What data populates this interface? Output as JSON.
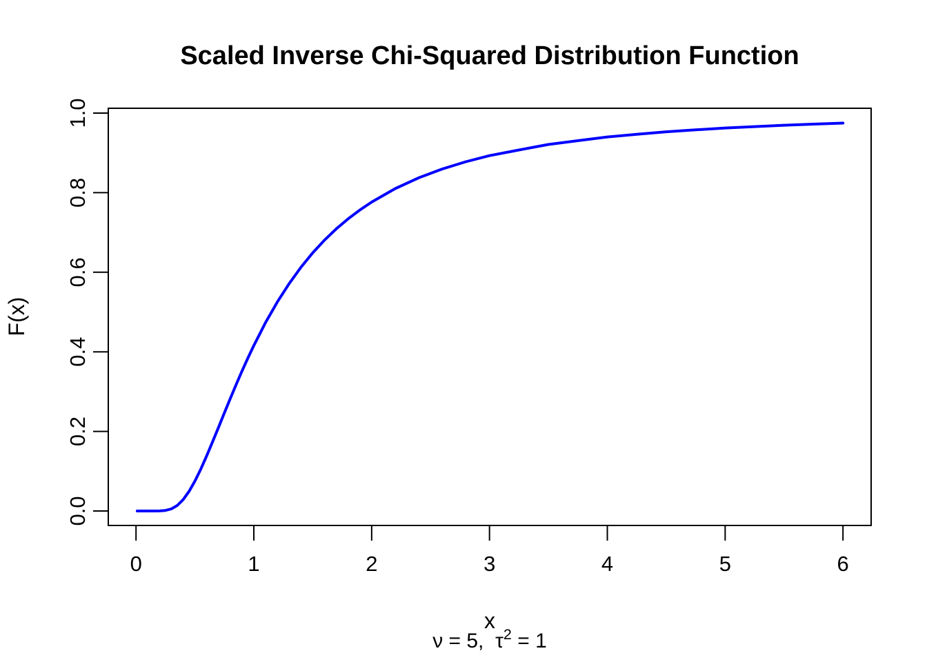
{
  "chart_data": {
    "type": "line",
    "title": "Scaled Inverse Chi-Squared Distribution Function",
    "xlabel": "x",
    "ylabel": "F(x)",
    "subtitle_prefix": "ν = 5,  τ",
    "subtitle_sup": "2",
    "subtitle_suffix": " = 1",
    "parameters": {
      "nu": 5,
      "tau_squared": 1
    },
    "line_color": "#0000ff",
    "axis_color": "#000000",
    "background_color": "#ffffff",
    "grid": false,
    "legend": null,
    "xlim": [
      0,
      6
    ],
    "ylim": [
      0.0,
      1.0
    ],
    "x_tick_values": [
      0,
      1,
      2,
      3,
      4,
      5,
      6
    ],
    "x_tick_labels": [
      "0",
      "1",
      "2",
      "3",
      "4",
      "5",
      "6"
    ],
    "y_tick_values": [
      0.0,
      0.2,
      0.4,
      0.6,
      0.8,
      1.0
    ],
    "y_tick_labels": [
      "0.0",
      "0.2",
      "0.4",
      "0.6",
      "0.8",
      "1.0"
    ],
    "series": [
      {
        "name": "F(x)",
        "x": [
          0.01,
          0.05,
          0.1,
          0.15,
          0.2,
          0.25,
          0.3,
          0.35,
          0.4,
          0.45,
          0.5,
          0.55,
          0.6,
          0.65,
          0.7,
          0.75,
          0.8,
          0.85,
          0.9,
          0.95,
          1.0,
          1.05,
          1.1,
          1.15,
          1.2,
          1.3,
          1.4,
          1.5,
          1.6,
          1.7,
          1.8,
          1.9,
          2.0,
          2.2,
          2.4,
          2.6,
          2.8,
          3.0,
          3.25,
          3.5,
          3.75,
          4.0,
          4.25,
          4.5,
          4.75,
          5.0,
          5.25,
          5.5,
          5.75,
          6.0
        ],
        "y": [
          0.0,
          0.0,
          0.0,
          0.0,
          0.0001,
          0.0013,
          0.0052,
          0.0139,
          0.0285,
          0.0492,
          0.0752,
          0.1055,
          0.1388,
          0.174,
          0.2101,
          0.2466,
          0.2826,
          0.3178,
          0.3519,
          0.3847,
          0.4158,
          0.4449,
          0.474,
          0.4998,
          0.5256,
          0.5715,
          0.6127,
          0.6488,
          0.6808,
          0.7091,
          0.7342,
          0.7565,
          0.7765,
          0.8102,
          0.8375,
          0.8597,
          0.8779,
          0.8931,
          0.9072,
          0.9212,
          0.9306,
          0.94,
          0.9466,
          0.9531,
          0.9579,
          0.9626,
          0.9661,
          0.9695,
          0.9722,
          0.9749
        ]
      }
    ]
  }
}
